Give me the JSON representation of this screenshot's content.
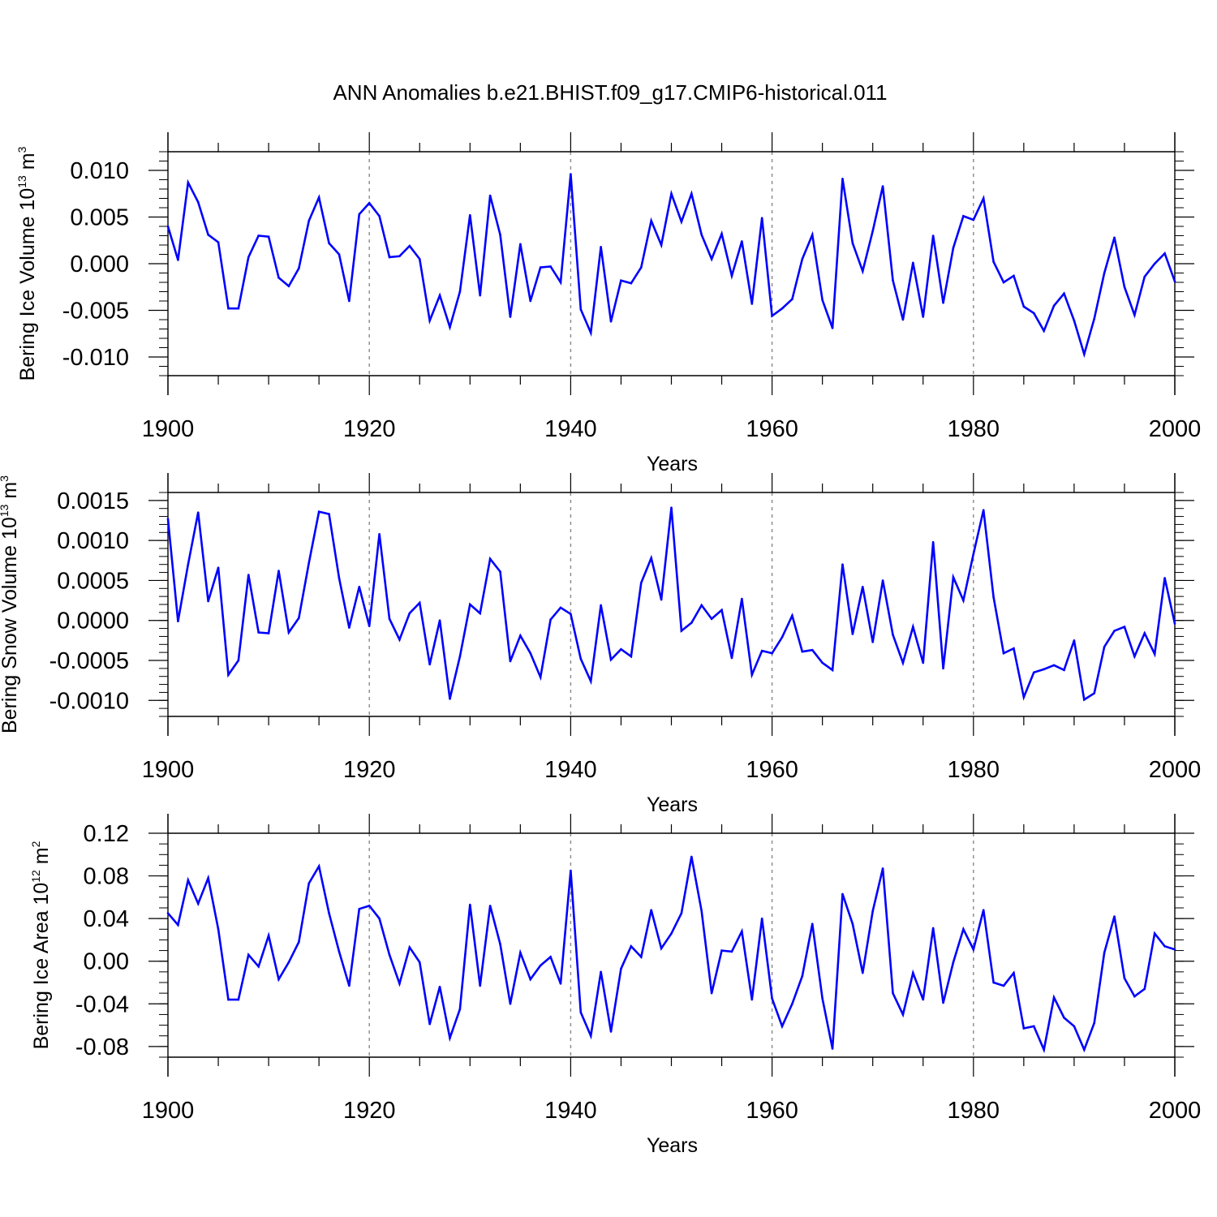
{
  "figure_title": "ANN Anomalies b.e21.BHIST.f09_g17.CMIP6-historical.011",
  "colors": {
    "series": "#0000ff",
    "axis": "#000000",
    "grid": "#888888"
  },
  "chart_data": [
    {
      "type": "line",
      "ylabel": {
        "text": "Bering Ice Volume 10",
        "sup": "13",
        "unit": " m",
        "unit_sup": "3"
      },
      "xlabel": "Years",
      "xlim": [
        1900,
        2000
      ],
      "ylim": [
        -0.012,
        0.012
      ],
      "x_ticks": [
        1900,
        1920,
        1940,
        1960,
        1980,
        2000
      ],
      "x_tick_labels": [
        "1900",
        "1920",
        "1940",
        "1960",
        "1980",
        "2000"
      ],
      "y_ticks": [
        -0.01,
        -0.005,
        0,
        0.005,
        0.01
      ],
      "y_tick_labels": [
        "-0.010",
        "-0.005",
        "0.000",
        "0.005",
        "0.010"
      ],
      "y_minor_step": 0.001,
      "grid_x": [
        1920,
        1940,
        1960,
        1980
      ],
      "series": [
        {
          "name": "Bering Ice Volume",
          "x_start": 1900,
          "values": [
            0.004,
            0.0004,
            0.0087,
            0.0066,
            0.0031,
            0.0023,
            -0.0048,
            -0.0048,
            0.0007,
            0.003,
            0.0029,
            -0.0015,
            -0.0024,
            -0.0005,
            0.0046,
            0.0071,
            0.0022,
            0.001,
            -0.004,
            0.0053,
            0.0065,
            0.0051,
            0.0007,
            0.0008,
            0.0019,
            0.0005,
            -0.0061,
            -0.0034,
            -0.0068,
            -0.003,
            0.0052,
            -0.0034,
            0.0073,
            0.0031,
            -0.0057,
            0.0021,
            -0.004,
            -0.0004,
            -0.0003,
            -0.002,
            0.0096,
            -0.0049,
            -0.0074,
            0.0018,
            -0.0062,
            -0.0018,
            -0.0021,
            -0.0004,
            0.0046,
            0.002,
            0.0075,
            0.0045,
            0.0075,
            0.0031,
            0.0005,
            0.0032,
            -0.0013,
            0.0024,
            -0.0043,
            0.0049,
            -0.0056,
            -0.0048,
            -0.0038,
            0.0005,
            0.0031,
            -0.0039,
            -0.0069,
            0.0091,
            0.0022,
            -0.0008,
            0.0035,
            0.0083,
            -0.0018,
            -0.006,
            0.0001,
            -0.0057,
            0.003,
            -0.0042,
            0.0017,
            0.0051,
            0.0047,
            0.007,
            0.0002,
            -0.002,
            -0.0013,
            -0.0046,
            -0.0053,
            -0.0072,
            -0.0045,
            -0.0032,
            -0.0061,
            -0.0097,
            -0.0059,
            -0.001,
            0.0028,
            -0.0025,
            -0.0055,
            -0.0014,
            0.0,
            0.0011,
            -0.0019
          ]
        }
      ]
    },
    {
      "type": "line",
      "ylabel": {
        "text": "Bering Snow Volume 10",
        "sup": "13",
        "unit": " m",
        "unit_sup": "3"
      },
      "xlabel": "Years",
      "xlim": [
        1900,
        2000
      ],
      "ylim": [
        -0.0012,
        0.0016
      ],
      "x_ticks": [
        1900,
        1920,
        1940,
        1960,
        1980,
        2000
      ],
      "x_tick_labels": [
        "1900",
        "1920",
        "1940",
        "1960",
        "1980",
        "2000"
      ],
      "y_ticks": [
        -0.001,
        -0.0005,
        0,
        0.0005,
        0.001,
        0.0015
      ],
      "y_tick_labels": [
        "-0.0010",
        "-0.0005",
        "0.0000",
        "0.0005",
        "0.0010",
        "0.0015"
      ],
      "y_minor_step": 0.0001,
      "grid_x": [
        1920,
        1940,
        1960,
        1980
      ],
      "series": [
        {
          "name": "Bering Snow Volume",
          "x_start": 1900,
          "values": [
            0.00127,
            -1e-05,
            0.0007,
            0.00135,
            0.00024,
            0.00066,
            -0.00068,
            -0.0005,
            0.00057,
            -0.00015,
            -0.00016,
            0.00062,
            -0.00015,
            3e-05,
            0.00072,
            0.00136,
            0.00133,
            0.00053,
            -9e-05,
            0.00042,
            -7e-05,
            0.00108,
            2e-05,
            -0.00024,
            9e-05,
            0.00022,
            -0.00055,
            0.0,
            -0.00098,
            -0.00045,
            0.0002,
            9e-05,
            0.00077,
            0.00061,
            -0.00051,
            -0.00019,
            -0.00041,
            -0.00071,
            1e-05,
            0.00016,
            8e-05,
            -0.00048,
            -0.00076,
            0.00019,
            -0.00049,
            -0.00036,
            -0.00045,
            0.00047,
            0.00078,
            0.00026,
            0.00141,
            -0.00013,
            -3e-05,
            0.00019,
            2e-05,
            0.00013,
            -0.00047,
            0.00027,
            -0.00068,
            -0.00038,
            -0.00041,
            -0.00021,
            6e-05,
            -0.00039,
            -0.00037,
            -0.00053,
            -0.00062,
            0.0007,
            -0.00017,
            0.00042,
            -0.00027,
            0.0005,
            -0.00018,
            -0.00053,
            -8e-05,
            -0.00053,
            0.00098,
            -0.0006,
            0.00054,
            0.00025,
            0.00083,
            0.00138,
            0.00029,
            -0.00041,
            -0.00035,
            -0.00096,
            -0.00065,
            -0.00061,
            -0.00056,
            -0.00062,
            -0.00025,
            -0.00099,
            -0.00091,
            -0.00033,
            -0.00013,
            -8e-05,
            -0.00045,
            -0.00016,
            -0.00042,
            0.00053,
            -4e-05
          ]
        }
      ]
    },
    {
      "type": "line",
      "ylabel": {
        "text": "Bering Ice Area 10",
        "sup": "12",
        "unit": " m",
        "unit_sup": "2"
      },
      "xlabel": "Years",
      "xlim": [
        1900,
        2000
      ],
      "ylim": [
        -0.09,
        0.12
      ],
      "x_ticks": [
        1900,
        1920,
        1940,
        1960,
        1980,
        2000
      ],
      "x_tick_labels": [
        "1900",
        "1920",
        "1940",
        "1960",
        "1980",
        "2000"
      ],
      "y_ticks": [
        -0.08,
        -0.04,
        0,
        0.04,
        0.08,
        0.12
      ],
      "y_tick_labels": [
        "-0.08",
        "-0.04",
        "0.00",
        "0.04",
        "0.08",
        "0.12"
      ],
      "y_minor_step": 0.01,
      "grid_x": [
        1920,
        1940,
        1960,
        1980
      ],
      "series": [
        {
          "name": "Bering Ice Area",
          "x_start": 1900,
          "values": [
            0.045,
            0.034,
            0.076,
            0.054,
            0.078,
            0.03,
            -0.036,
            -0.036,
            0.006,
            -0.005,
            0.024,
            -0.017,
            -0.001,
            0.018,
            0.073,
            0.089,
            0.045,
            0.009,
            -0.023,
            0.049,
            0.052,
            0.04,
            0.006,
            -0.021,
            0.013,
            -0.001,
            -0.059,
            -0.024,
            -0.072,
            -0.045,
            0.053,
            -0.023,
            0.052,
            0.016,
            -0.04,
            0.008,
            -0.017,
            -0.004,
            0.004,
            -0.021,
            0.085,
            -0.048,
            -0.07,
            -0.01,
            -0.066,
            -0.007,
            0.014,
            0.004,
            0.048,
            0.012,
            0.026,
            0.045,
            0.098,
            0.047,
            -0.03,
            0.01,
            0.009,
            0.028,
            -0.036,
            0.04,
            -0.035,
            -0.061,
            -0.04,
            -0.014,
            0.035,
            -0.035,
            -0.082,
            0.063,
            0.035,
            -0.011,
            0.047,
            0.087,
            -0.03,
            -0.05,
            -0.011,
            -0.036,
            0.031,
            -0.039,
            -0.001,
            0.03,
            0.011,
            0.048,
            -0.02,
            -0.023,
            -0.011,
            -0.063,
            -0.061,
            -0.083,
            -0.034,
            -0.053,
            -0.061,
            -0.083,
            -0.058,
            0.008,
            0.042,
            -0.016,
            -0.033,
            -0.026,
            0.026,
            0.014,
            0.011
          ]
        }
      ]
    }
  ]
}
